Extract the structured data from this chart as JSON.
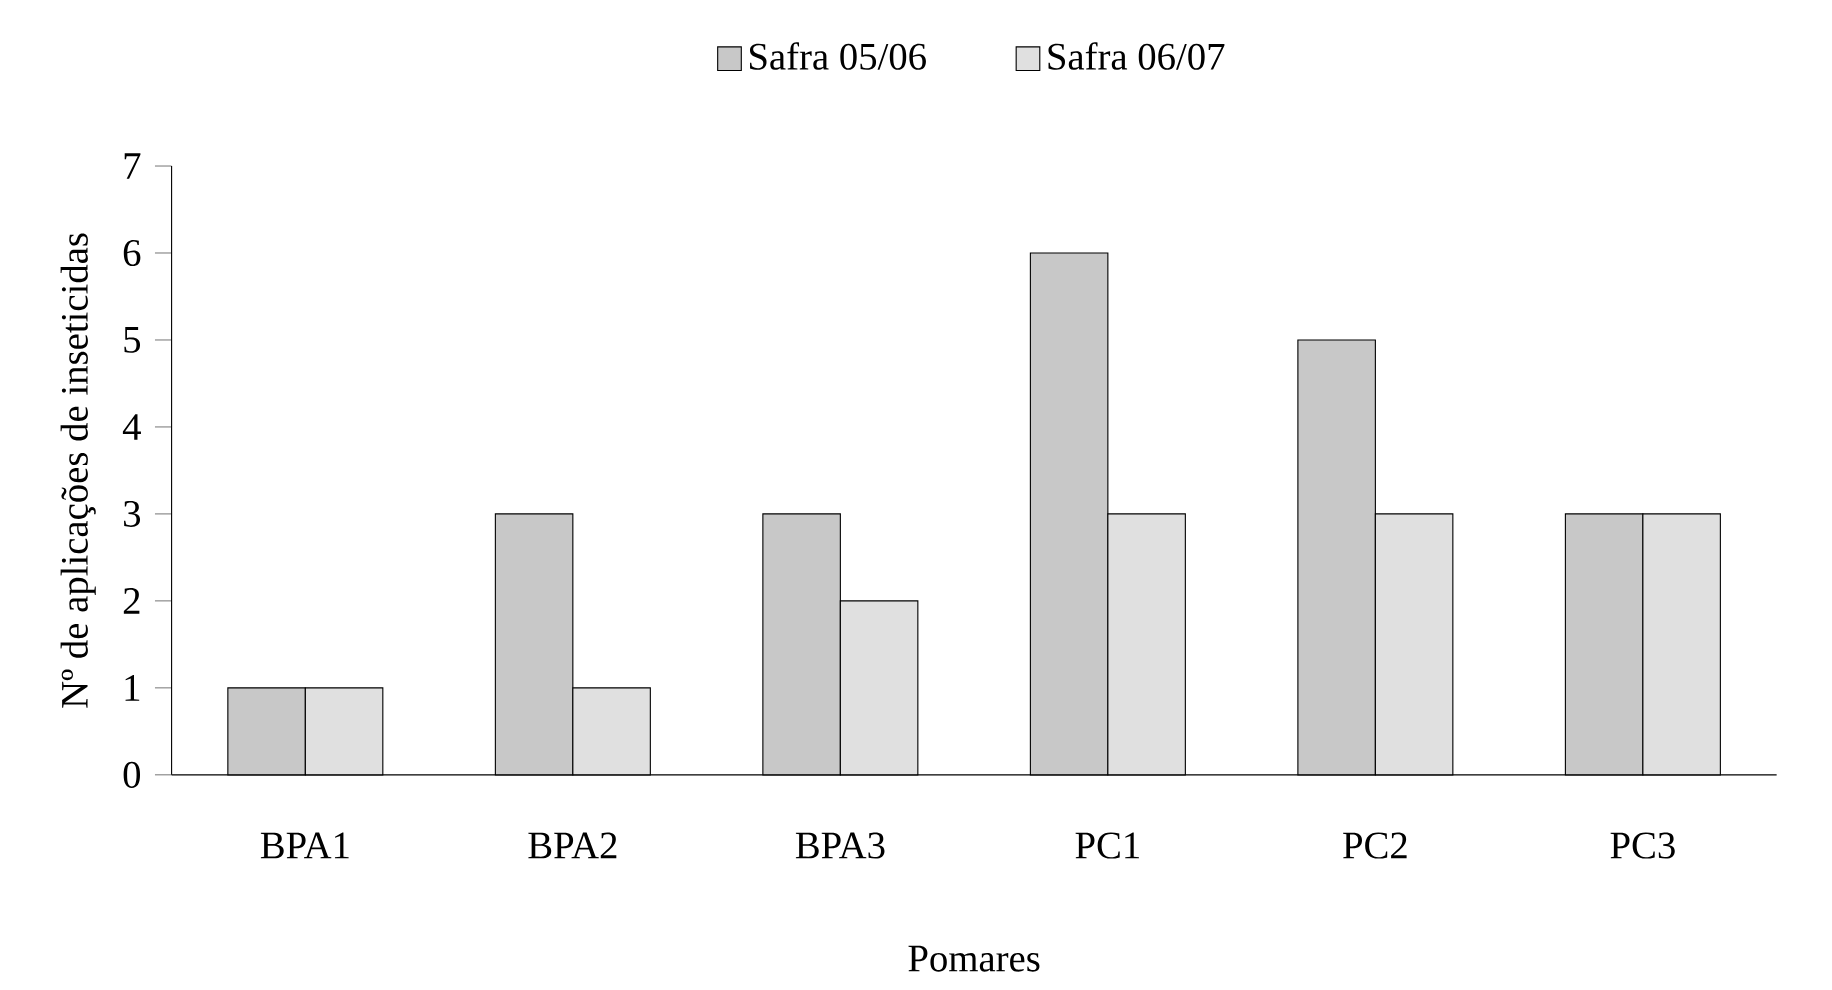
{
  "chart_data": {
    "type": "bar",
    "xlabel": "Pomares",
    "ylabel": "Nº de aplicações de inseticidas",
    "categories": [
      "BPA1",
      "BPA2",
      "BPA3",
      "PC1",
      "PC2",
      "PC3"
    ],
    "series": [
      {
        "name": "Safra 05/06",
        "color": "#c8c8c8",
        "values": [
          1,
          3,
          3,
          6,
          5,
          3
        ]
      },
      {
        "name": "Safra 06/07",
        "color": "#e0e0e0",
        "values": [
          1,
          1,
          2,
          3,
          3,
          3
        ]
      }
    ],
    "ylim": [
      0,
      7
    ],
    "yticks": [
      0,
      1,
      2,
      3,
      4,
      5,
      6,
      7
    ],
    "grid": false,
    "legend": "top"
  }
}
